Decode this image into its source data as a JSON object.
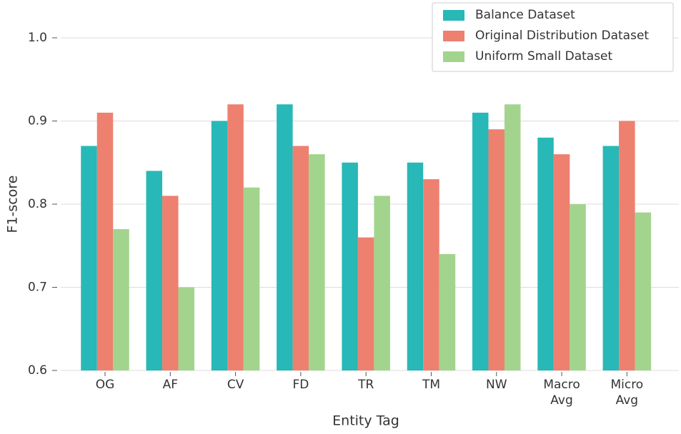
{
  "chart_data": {
    "type": "bar",
    "xlabel": "Entity Tag",
    "ylabel": "F1-score",
    "categories": [
      "OG",
      "AF",
      "CV",
      "FD",
      "TR",
      "TM",
      "NW",
      "Macro Avg",
      "Micro Avg"
    ],
    "series": [
      {
        "name": "Balance Dataset",
        "color": "#27b8b7",
        "values": [
          0.87,
          0.84,
          0.9,
          0.92,
          0.85,
          0.85,
          0.91,
          0.88,
          0.87
        ]
      },
      {
        "name": "Original Distribution Dataset",
        "color": "#ee8070",
        "values": [
          0.91,
          0.81,
          0.92,
          0.87,
          0.76,
          0.83,
          0.89,
          0.86,
          0.9
        ]
      },
      {
        "name": "Uniform Small Dataset",
        "color": "#a2d48e",
        "values": [
          0.77,
          0.7,
          0.82,
          0.86,
          0.81,
          0.74,
          0.92,
          0.8,
          0.79
        ]
      }
    ],
    "ylim": [
      0.6,
      1.04
    ],
    "yticks": [
      0.6,
      0.7,
      0.8,
      0.9,
      {
        "value": 1,
        "label": "1.0"
      }
    ],
    "grid": true,
    "legend": "upper right"
  }
}
